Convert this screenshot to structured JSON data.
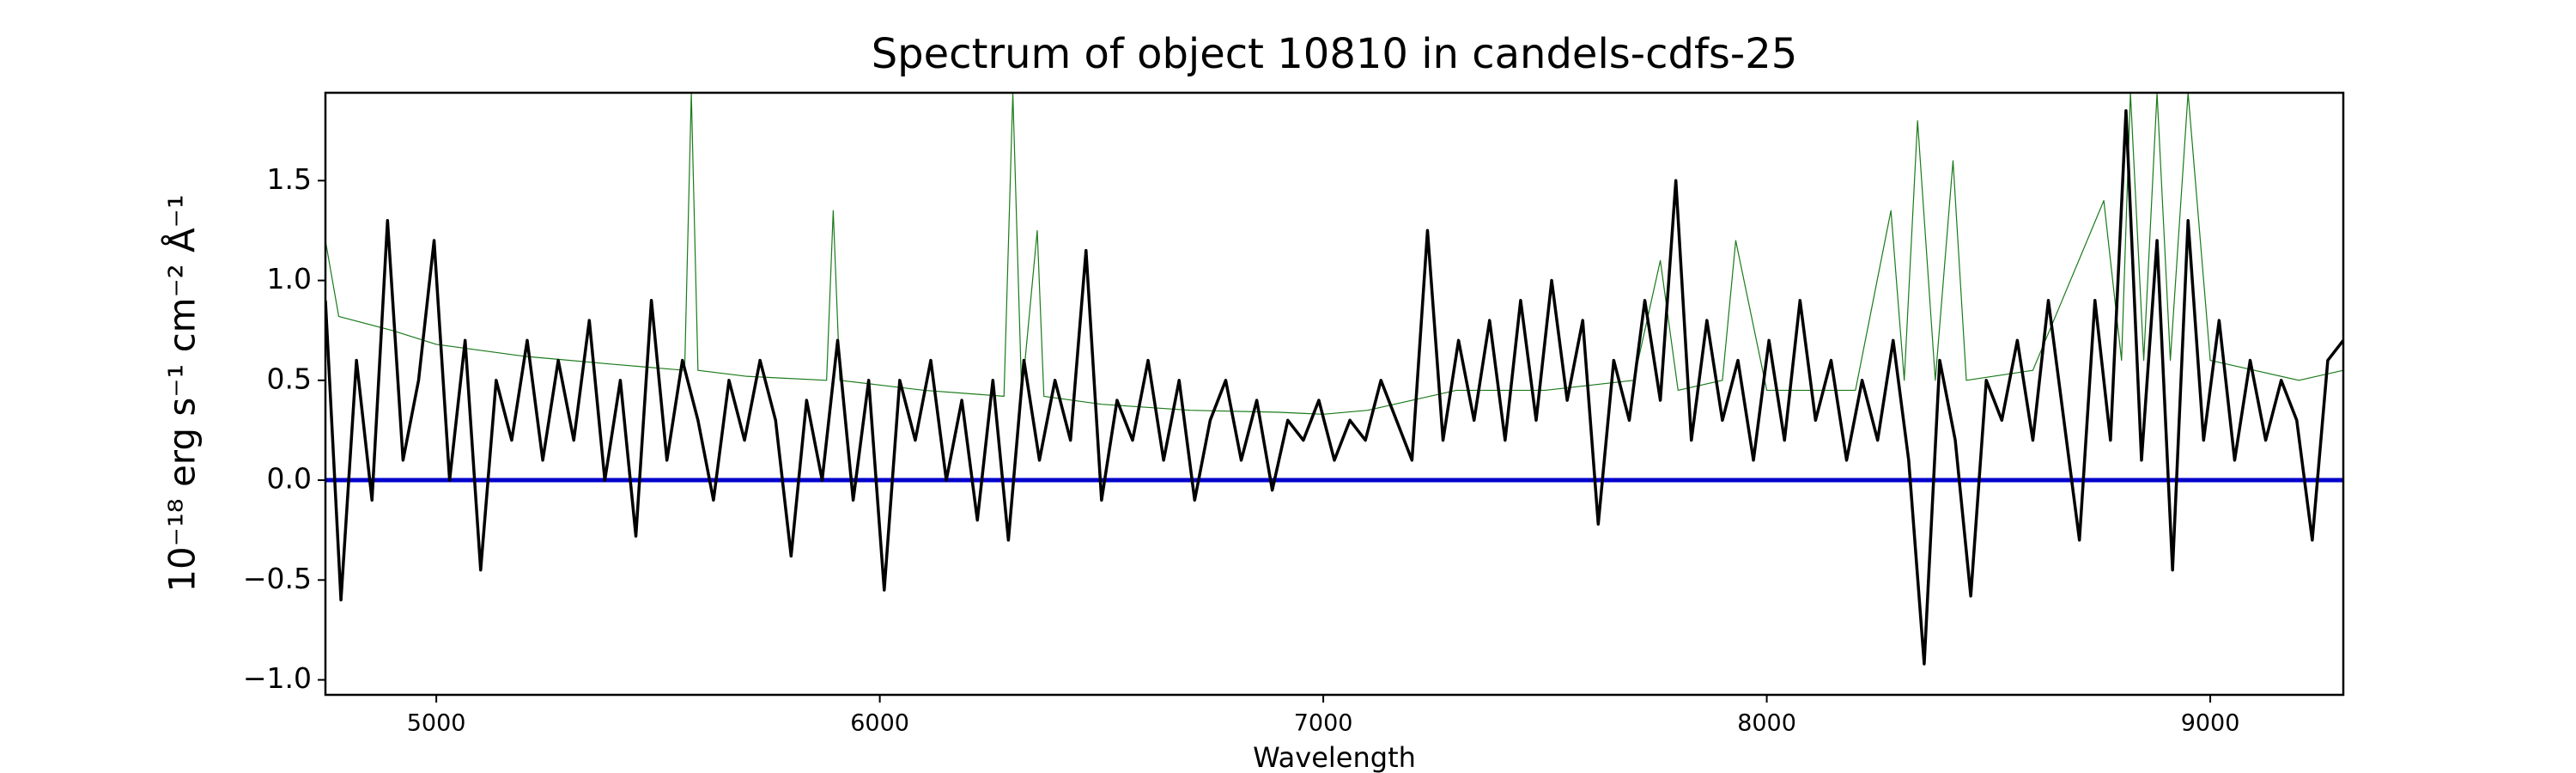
{
  "chart_data": {
    "type": "line",
    "title": "Spectrum of object 10810 in candels-cdfs-25",
    "xlabel": "Wavelength",
    "ylabel": "10⁻¹⁸ erg s⁻¹ cm⁻² Å⁻¹",
    "xlim": [
      4750,
      9300
    ],
    "ylim": [
      -1.075,
      1.94
    ],
    "xticks": [
      5000,
      6000,
      7000,
      8000,
      9000
    ],
    "yticks": [
      {
        "value": -1,
        "label": "−1.0"
      },
      {
        "value": -0.5,
        "label": "−0.5"
      },
      {
        "value": 0,
        "label": "0.0"
      },
      {
        "value": 0.5,
        "label": "0.5"
      },
      {
        "value": 1,
        "label": "1.0"
      },
      {
        "value": 1.5,
        "label": "1.5"
      }
    ],
    "series": [
      {
        "color": "#1a7a1a",
        "width": 1.2,
        "x": [
          4750,
          4780,
          4900,
          5000,
          5200,
          5400,
          5560,
          5575,
          5590,
          5700,
          5880,
          5895,
          5910,
          6100,
          6280,
          6300,
          6320,
          6355,
          6370,
          6500,
          6700,
          6900,
          7000,
          7100,
          7200,
          7300,
          7500,
          7700,
          7760,
          7800,
          7900,
          7930,
          8000,
          8200,
          8280,
          8310,
          8340,
          8380,
          8420,
          8450,
          8600,
          8760,
          8800,
          8820,
          8850,
          8880,
          8910,
          8950,
          9000,
          9100,
          9200,
          9300
        ],
        "values": [
          1.2,
          0.82,
          0.75,
          0.68,
          0.62,
          0.58,
          0.55,
          1.94,
          0.55,
          0.52,
          0.5,
          1.35,
          0.5,
          0.45,
          0.42,
          1.94,
          0.42,
          1.25,
          0.42,
          0.38,
          0.35,
          0.34,
          0.33,
          0.35,
          0.4,
          0.45,
          0.45,
          0.5,
          1.1,
          0.45,
          0.5,
          1.2,
          0.45,
          0.45,
          1.35,
          0.5,
          1.8,
          0.5,
          1.6,
          0.5,
          0.55,
          1.4,
          0.6,
          1.94,
          0.6,
          1.94,
          0.6,
          1.94,
          0.6,
          0.55,
          0.5,
          0.55
        ]
      },
      {
        "color": "#0000cc",
        "width": 5,
        "x": [
          4750,
          9300
        ],
        "values": [
          0,
          0
        ]
      },
      {
        "color": "#000000",
        "width": 3.5,
        "x": [
          4750,
          4785,
          4820,
          4855,
          4890,
          4925,
          4960,
          4995,
          5030,
          5065,
          5100,
          5135,
          5170,
          5205,
          5240,
          5275,
          5310,
          5345,
          5380,
          5415,
          5450,
          5485,
          5520,
          5555,
          5590,
          5625,
          5660,
          5695,
          5730,
          5765,
          5800,
          5835,
          5870,
          5905,
          5940,
          5975,
          6010,
          6045,
          6080,
          6115,
          6150,
          6185,
          6220,
          6255,
          6290,
          6325,
          6360,
          6395,
          6430,
          6465,
          6500,
          6535,
          6570,
          6605,
          6640,
          6675,
          6710,
          6745,
          6780,
          6815,
          6850,
          6885,
          6920,
          6955,
          6990,
          7025,
          7060,
          7095,
          7130,
          7165,
          7200,
          7235,
          7270,
          7305,
          7340,
          7375,
          7410,
          7445,
          7480,
          7515,
          7550,
          7585,
          7620,
          7655,
          7690,
          7725,
          7760,
          7795,
          7830,
          7865,
          7900,
          7935,
          7970,
          8005,
          8040,
          8075,
          8110,
          8145,
          8180,
          8215,
          8250,
          8285,
          8320,
          8355,
          8390,
          8425,
          8460,
          8495,
          8530,
          8565,
          8600,
          8635,
          8670,
          8705,
          8740,
          8775,
          8810,
          8845,
          8880,
          8915,
          8950,
          8985,
          9020,
          9055,
          9090,
          9125,
          9160,
          9195,
          9230,
          9265,
          9300
        ],
        "values": [
          0.9,
          -0.6,
          0.6,
          -0.1,
          1.3,
          0.1,
          0.5,
          1.2,
          0.0,
          0.7,
          -0.45,
          0.5,
          0.2,
          0.7,
          0.1,
          0.6,
          0.2,
          0.8,
          0.0,
          0.5,
          -0.28,
          0.9,
          0.1,
          0.6,
          0.3,
          -0.1,
          0.5,
          0.2,
          0.6,
          0.3,
          -0.38,
          0.4,
          0.0,
          0.7,
          -0.1,
          0.5,
          -0.55,
          0.5,
          0.2,
          0.6,
          0.0,
          0.4,
          -0.2,
          0.5,
          -0.3,
          0.6,
          0.1,
          0.5,
          0.2,
          1.15,
          -0.1,
          0.4,
          0.2,
          0.6,
          0.1,
          0.5,
          -0.1,
          0.3,
          0.5,
          0.1,
          0.4,
          -0.05,
          0.3,
          0.2,
          0.4,
          0.1,
          0.3,
          0.2,
          0.5,
          0.3,
          0.1,
          1.25,
          0.2,
          0.7,
          0.3,
          0.8,
          0.2,
          0.9,
          0.3,
          1.0,
          0.4,
          0.8,
          -0.22,
          0.6,
          0.3,
          0.9,
          0.4,
          1.5,
          0.2,
          0.8,
          0.3,
          0.6,
          0.1,
          0.7,
          0.2,
          0.9,
          0.3,
          0.6,
          0.1,
          0.5,
          0.2,
          0.7,
          0.1,
          -0.92,
          0.6,
          0.2,
          -0.58,
          0.5,
          0.3,
          0.7,
          0.2,
          0.9,
          0.3,
          -0.3,
          0.9,
          0.2,
          1.85,
          0.1,
          1.2,
          -0.45,
          1.3,
          0.2,
          0.8,
          0.1,
          0.6,
          0.2,
          0.5,
          0.3,
          -0.3,
          0.6,
          0.7
        ]
      }
    ]
  }
}
